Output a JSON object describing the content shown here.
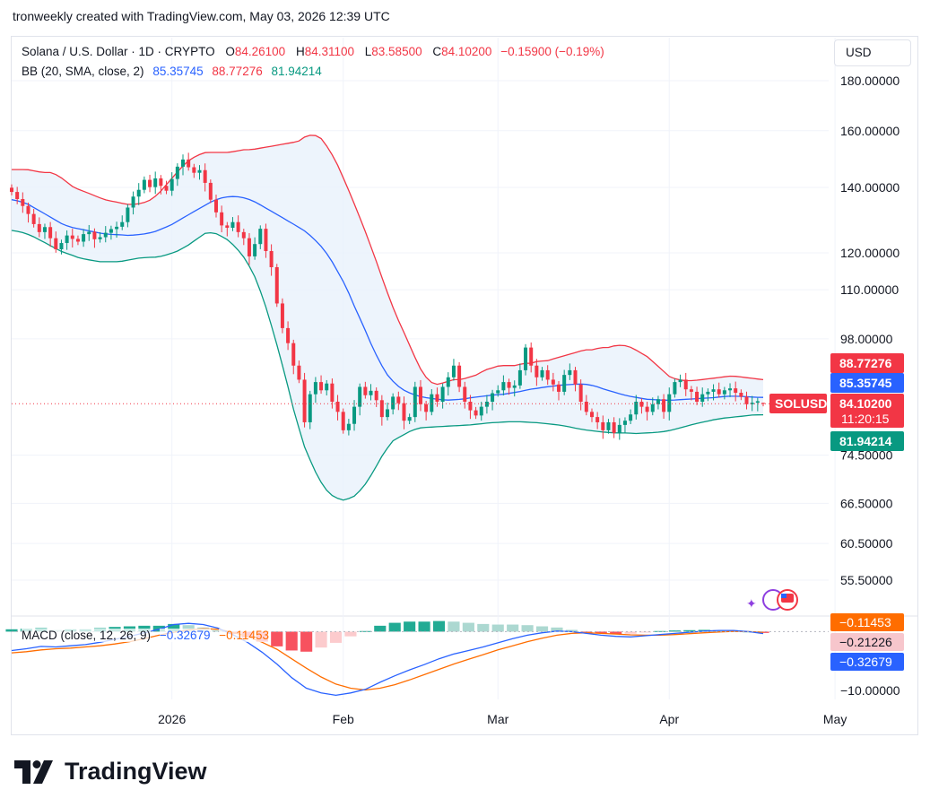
{
  "header": {
    "credit": "tronweekly created with TradingView.com, May 03, 2026 12:39 UTC"
  },
  "legend": {
    "symbol": "Solana / U.S. Dollar · 1D · CRYPTO",
    "o_label": "O",
    "o_value": "84.26100",
    "h_label": "H",
    "h_value": "84.31100",
    "l_label": "L",
    "l_value": "83.58500",
    "c_label": "C",
    "c_value": "84.10200",
    "change": "−0.15900 (−0.19%)",
    "bb_label": "BB (20, SMA, close, 2)",
    "bb_mid": "85.35745",
    "bb_upper": "88.77276",
    "bb_lower": "81.94214"
  },
  "macd_legend": {
    "label": "MACD (close, 12, 26, 9)",
    "macd": "−0.32679",
    "signal": "−0.11453"
  },
  "currency_button": "USD",
  "logo_text": "TradingView",
  "colors": {
    "up": "#089981",
    "down": "#f23645",
    "bb_mid": "#2962ff",
    "bb_upper": "#f23645",
    "bb_lower": "#089981",
    "bb_fill": "#e8f1fb",
    "macd": "#2962ff",
    "signal": "#ff6d00",
    "grid": "#f0f3fa",
    "text": "#131722"
  },
  "chart_data": {
    "type": "candlestick",
    "title": "Solana / U.S. Dollar · 1D · CRYPTO",
    "scale": "log",
    "ylim": [
      45,
      190
    ],
    "y_ticks": [
      "180.00000",
      "160.00000",
      "140.00000",
      "120.00000",
      "110.00000",
      "98.00000",
      "74.50000",
      "66.50000",
      "60.50000",
      "55.50000"
    ],
    "y_tick_values": [
      180,
      160,
      140,
      120,
      110,
      98,
      74.5,
      66.5,
      60.5,
      55.5
    ],
    "x_labels": [
      "2026",
      "Feb",
      "Mar",
      "Apr",
      "May"
    ],
    "x_label_dates": [
      "2026-01-01",
      "2026-02-01",
      "2026-03-01",
      "2026-04-01",
      "2026-05-01"
    ],
    "start_date": "2025-12-03",
    "last": {
      "open": 84.261,
      "high": 84.311,
      "low": 83.585,
      "close": 84.102,
      "change": -0.159,
      "change_pct": -0.19
    },
    "price_tags": [
      {
        "label": "88.77276",
        "value": 88.77276,
        "color": "#f23645"
      },
      {
        "label": "85.35745",
        "value": 85.35745,
        "color": "#2962ff"
      },
      {
        "label": "84.10200",
        "value": 84.102,
        "color": "#f23645",
        "symbol": "SOLUSD",
        "countdown": "11:20:15"
      },
      {
        "label": "81.94214",
        "value": 81.94214,
        "color": "#089981"
      }
    ],
    "closes": [
      138.5,
      136.2,
      134.0,
      131.5,
      128.4,
      126.0,
      127.5,
      124.2,
      121.0,
      122.8,
      125.0,
      124.0,
      123.2,
      125.4,
      126.1,
      123.9,
      124.5,
      125.8,
      126.9,
      127.6,
      129.0,
      133.5,
      137.0,
      139.2,
      142.5,
      140.1,
      143.0,
      140.5,
      138.9,
      142.8,
      147.0,
      149.5,
      146.8,
      144.9,
      145.8,
      141.5,
      136.0,
      132.0,
      128.0,
      127.3,
      129.0,
      126.0,
      124.2,
      119.0,
      122.5,
      127.0,
      120.5,
      116.0,
      106.5,
      100.5,
      97.0,
      92.0,
      89.0,
      80.5,
      86.0,
      88.5,
      86.8,
      88.2,
      84.5,
      82.5,
      79.0,
      80.2,
      83.5,
      87.5,
      85.8,
      86.7,
      84.8,
      81.5,
      83.0,
      85.5,
      84.2,
      80.8,
      81.5,
      87.5,
      84.0,
      82.5,
      86.0,
      84.5,
      87.5,
      89.5,
      92.0,
      87.5,
      84.5,
      82.8,
      81.8,
      83.5,
      84.5,
      86.2,
      86.8,
      88.5,
      87.3,
      87.8,
      91.0,
      96.0,
      92.0,
      89.5,
      91.0,
      89.0,
      88.0,
      86.5,
      90.0,
      91.0,
      88.0,
      84.5,
      82.5,
      81.5,
      80.5,
      79.0,
      80.5,
      78.5,
      80.0,
      80.8,
      82.0,
      84.5,
      83.5,
      82.5,
      84.0,
      85.0,
      82.5,
      86.0,
      88.5,
      89.0,
      87.0,
      86.5,
      84.5,
      86.0,
      86.5,
      87.0,
      86.0,
      86.8,
      87.2,
      86.3,
      85.5,
      84.0,
      84.3,
      84.6,
      84.102
    ],
    "bb_upper": [
      146,
      146,
      146,
      145.5,
      145,
      145,
      144,
      142,
      140,
      139,
      138,
      137,
      136,
      135.5,
      135,
      134.5,
      134.5,
      135,
      136,
      138,
      141,
      144,
      147,
      149.5,
      151,
      152,
      152,
      152,
      152,
      152.5,
      153,
      153,
      153.5,
      154,
      154.5,
      155,
      155.5,
      156,
      158,
      158.5,
      157,
      153,
      148,
      142,
      136,
      130,
      124,
      118,
      112,
      106.5,
      102,
      98,
      94,
      90.5,
      88.5,
      88,
      88.5,
      89,
      89,
      89.5,
      90,
      91,
      91.5,
      92,
      92,
      92,
      92.5,
      92.5,
      93,
      93,
      93.5,
      94,
      94.5,
      95,
      95.5,
      95.5,
      96,
      96,
      96.5,
      96.5,
      96,
      95,
      94,
      92.5,
      91,
      89.5,
      89,
      88.8,
      88.8,
      89,
      89.2,
      89.4,
      89.6,
      89.8,
      89.6,
      89.4,
      89.2,
      89
    ],
    "bb_mid": [
      136,
      135.5,
      134.5,
      133,
      131.5,
      130,
      128.5,
      127.5,
      127,
      126.5,
      126,
      125.5,
      125.3,
      125.2,
      125,
      125.2,
      125.5,
      126,
      127,
      128,
      129.5,
      131,
      132.5,
      134,
      135.5,
      136.5,
      137,
      137,
      136.5,
      135.5,
      134,
      132.5,
      131,
      129.5,
      128,
      126.5,
      124.5,
      122,
      119,
      115,
      111,
      106,
      101.5,
      97,
      93,
      90,
      88,
      86.8,
      86,
      85.5,
      85.2,
      85,
      84.8,
      84.9,
      85,
      85.3,
      85.5,
      85.7,
      85.9,
      86,
      86.3,
      86.6,
      87,
      87.2,
      87.5,
      87.7,
      87.9,
      88,
      88.1,
      88,
      87.6,
      87,
      86.5,
      86,
      85.6,
      85.3,
      85,
      84.9,
      84.8,
      84.8,
      84.9,
      85,
      85.1,
      85.2,
      85.3,
      85.5,
      85.6,
      85.6,
      85.5,
      85.4,
      85.36
    ],
    "bb_lower": [
      126.5,
      126,
      125,
      123.5,
      122,
      120.5,
      119.5,
      118.5,
      118,
      117.5,
      117.5,
      117.5,
      118,
      118.5,
      118.7,
      118.8,
      119.5,
      120.5,
      122,
      124,
      126,
      125.5,
      124,
      121.5,
      118,
      113,
      106,
      98,
      90,
      82,
      76,
      72,
      69,
      67.5,
      67,
      67.5,
      69,
      71.5,
      74.5,
      77,
      78,
      79,
      79.5,
      79.6,
      79.7,
      79.8,
      79.9,
      80,
      80.2,
      80.4,
      80.5,
      80.6,
      80.6,
      80.5,
      80.4,
      80.2,
      80,
      79.7,
      79.3,
      79,
      78.8,
      78.6,
      78.5,
      78.5,
      78.4,
      78.5,
      78.6,
      78.8,
      79.2,
      79.7,
      80.2,
      80.6,
      81,
      81.3,
      81.5,
      81.7,
      81.9,
      81.94
    ],
    "macd": {
      "ylim": [
        -11.5,
        2.5
      ],
      "y_tick": "−10.00000",
      "y_tick_value": -10,
      "price_tags": [
        {
          "label": "−0.11453",
          "value": -0.11453,
          "color": "#ff6d00"
        },
        {
          "label": "−0.21226",
          "value": -0.21226,
          "color": "#f7c6cc"
        },
        {
          "label": "−0.32679",
          "value": -0.32679,
          "color": "#2962ff"
        }
      ],
      "macd_line": [
        -3.2,
        -2.9,
        -2.5,
        -2.6,
        -2.4,
        -2.2,
        -1.8,
        -1.3,
        -0.8,
        -0.2,
        0.4,
        1.2,
        1.4,
        1.2,
        0.6,
        -0.5,
        -1.8,
        -3.5,
        -5.5,
        -7.8,
        -9.6,
        -10.4,
        -10.8,
        -10.4,
        -9.8,
        -8.6,
        -7.5,
        -6.5,
        -5.6,
        -4.6,
        -3.8,
        -3.2,
        -2.6,
        -1.9,
        -1.2,
        -0.6,
        -0.2,
        0.1,
        0.0,
        -0.3,
        -0.6,
        -0.8,
        -0.9,
        -0.7,
        -0.5,
        -0.3,
        -0.1,
        0.1,
        0.2,
        0.2,
        0.0,
        -0.33
      ],
      "signal_line": [
        -3.6,
        -3.4,
        -3.1,
        -2.9,
        -2.8,
        -2.6,
        -2.4,
        -2.1,
        -1.7,
        -1.2,
        -0.6,
        -0.1,
        0.3,
        0.5,
        0.4,
        -0.1,
        -0.8,
        -1.8,
        -3.0,
        -4.6,
        -6.2,
        -7.7,
        -8.9,
        -9.6,
        -9.9,
        -9.6,
        -9.0,
        -8.2,
        -7.3,
        -6.4,
        -5.5,
        -4.7,
        -3.9,
        -3.1,
        -2.4,
        -1.7,
        -1.1,
        -0.6,
        -0.3,
        -0.2,
        -0.3,
        -0.4,
        -0.55,
        -0.6,
        -0.6,
        -0.5,
        -0.35,
        -0.2,
        -0.05,
        0.05,
        0.0,
        -0.11
      ]
    }
  }
}
